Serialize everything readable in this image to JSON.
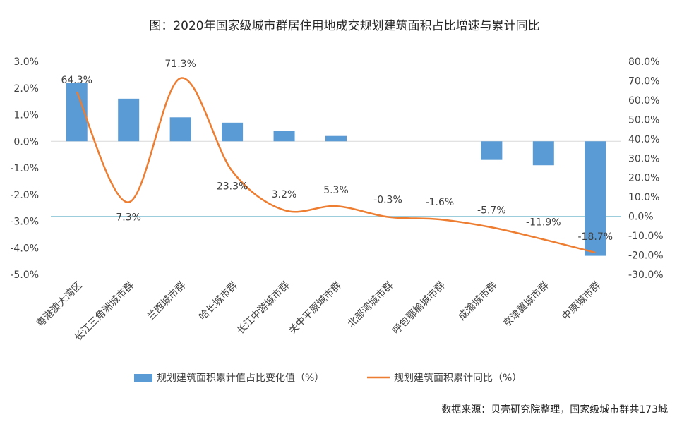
{
  "chart_data": {
    "type": "bar+line",
    "title": "图：2020年国家级城市群居住用地成交规划建筑面积占比增速与累计同比",
    "categories": [
      "粤港澳大湾区",
      "长江三角洲城市群",
      "兰西城市群",
      "哈长城市群",
      "长江中游城市群",
      "关中平原城市群",
      "北部湾城市群",
      "呼包鄂榆城市群",
      "成渝城市群",
      "京津冀城市群",
      "中原城市群"
    ],
    "series": [
      {
        "name": "规划建筑面积累计值占比变化值（%）",
        "type": "bar",
        "axis": "left",
        "color": "#5B9BD5",
        "values": [
          2.2,
          1.6,
          0.9,
          0.7,
          0.4,
          0.2,
          0.0,
          0.0,
          -0.7,
          -0.9,
          -4.3
        ]
      },
      {
        "name": "规划建筑面积累计同比（%）",
        "type": "line",
        "axis": "right",
        "color": "#ED7D31",
        "values": [
          64.3,
          7.3,
          71.3,
          23.3,
          3.2,
          5.3,
          -0.3,
          -1.6,
          -5.7,
          -11.9,
          -18.7
        ],
        "labels": [
          "64.3%",
          "7.3%",
          "71.3%",
          "23.3%",
          "3.2%",
          "5.3%",
          "-0.3%",
          "-1.6%",
          "-5.7%",
          "-11.9%",
          "-18.7%"
        ]
      }
    ],
    "y_left": {
      "min": -5,
      "max": 3,
      "step": 1,
      "ticks": [
        "3.0%",
        "2.0%",
        "1.0%",
        "0.0%",
        "-1.0%",
        "-2.0%",
        "-3.0%",
        "-4.0%",
        "-5.0%"
      ]
    },
    "y_right": {
      "min": -30,
      "max": 80,
      "step": 10,
      "ticks": [
        "80.0%",
        "70.0%",
        "60.0%",
        "50.0%",
        "40.0%",
        "30.0%",
        "20.0%",
        "10.0%",
        "0.0%",
        "-10.0%",
        "-20.0%",
        "-30.0%"
      ]
    },
    "legend_position": "bottom",
    "grid": false
  },
  "source": "数据来源：贝壳研究院整理，国家级城市群共173城"
}
